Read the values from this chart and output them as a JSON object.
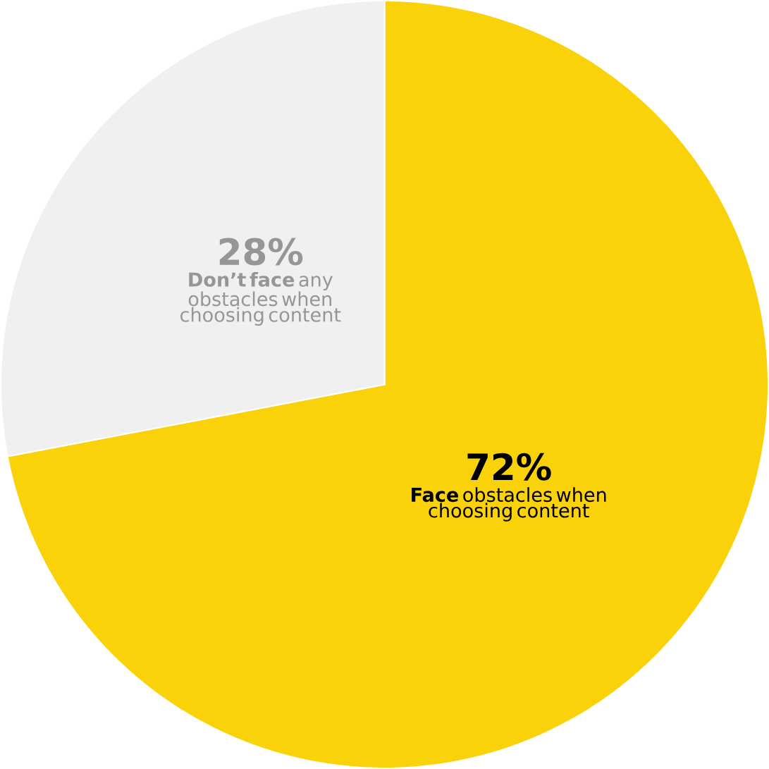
{
  "chart_data": {
    "type": "pie",
    "categories": [
      "**Face** obstacles when choosing content",
      "**Don’t face** any obstacles when choosing content"
    ],
    "values": [
      72,
      28
    ],
    "colors": [
      "#f9d209",
      "#f0f0f0"
    ],
    "value_labels": [
      "72%",
      "28%"
    ]
  }
}
